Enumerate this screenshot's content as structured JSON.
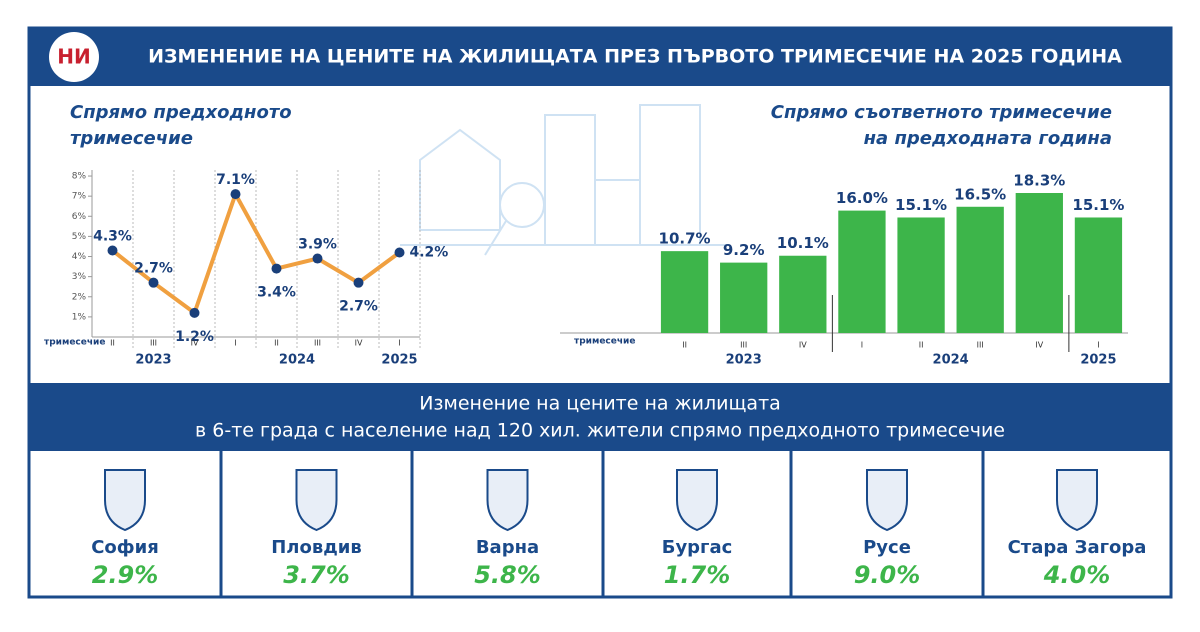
{
  "title": "ИЗМЕНЕНИЕ НА ЦЕНИТЕ НА ЖИЛИЩАТА ПРЕЗ ПЪРВОТО ТРИМЕСЕЧИЕ НА 2025 ГОДИНА",
  "chart_data": [
    {
      "type": "line",
      "title_lines": [
        "Спрямо предходното",
        "тримесечие"
      ],
      "x_label": "тримесечие",
      "categories": [
        "II",
        "III",
        "IV",
        "I",
        "II",
        "III",
        "IV",
        "I"
      ],
      "category_years": [
        "2023",
        "2023",
        "2023",
        "2024",
        "2024",
        "2024",
        "2024",
        "2025"
      ],
      "values": [
        4.3,
        2.7,
        1.2,
        7.1,
        3.4,
        3.9,
        2.7,
        4.2
      ],
      "value_labels": [
        "4.3%",
        "2.7%",
        "1.2%",
        "7.1%",
        "3.4%",
        "3.9%",
        "2.7%",
        "4.2%"
      ],
      "color": "#f0a040",
      "marker_color": "#1a3f7a",
      "ylim": [
        0,
        8.3
      ],
      "yticks": [
        {
          "value": 1,
          "label": "1%"
        },
        {
          "value": 2,
          "label": "2%"
        },
        {
          "value": 3,
          "label": "3%"
        },
        {
          "value": 4,
          "label": "4%"
        },
        {
          "value": 5,
          "label": "5%"
        },
        {
          "value": 6,
          "label": "6%"
        },
        {
          "value": 7,
          "label": "7%"
        },
        {
          "value": 8,
          "label": "8%"
        }
      ]
    },
    {
      "type": "bar",
      "title_lines": [
        "Спрямо съответното тримесечие",
        "на предходната година"
      ],
      "x_label": "тримесечие",
      "categories": [
        "II",
        "III",
        "IV",
        "I",
        "II",
        "III",
        "IV",
        "I"
      ],
      "category_years": [
        "2023",
        "2023",
        "2023",
        "2024",
        "2024",
        "2024",
        "2024",
        "2025"
      ],
      "values": [
        10.7,
        9.2,
        10.1,
        16.0,
        15.1,
        16.5,
        18.3,
        15.1
      ],
      "value_labels": [
        "10.7%",
        "9.2%",
        "10.1%",
        "16.0%",
        "15.1%",
        "16.5%",
        "18.3%",
        "15.1%"
      ],
      "color": "#3db54a",
      "ylim": [
        0,
        20
      ]
    }
  ],
  "cities_section": {
    "title_lines": [
      "Изменение на цените на жилищата",
      "в 6-те града с население над 120 хил. жители спрямо предходното тримесечие"
    ],
    "cities": [
      {
        "name": "София",
        "change": "2.9%"
      },
      {
        "name": "Пловдив",
        "change": "3.7%"
      },
      {
        "name": "Варна",
        "change": "5.8%"
      },
      {
        "name": "Бургас",
        "change": "1.7%"
      },
      {
        "name": "Русе",
        "change": "9.0%"
      },
      {
        "name": "Стара Загора",
        "change": "4.0%"
      }
    ]
  }
}
